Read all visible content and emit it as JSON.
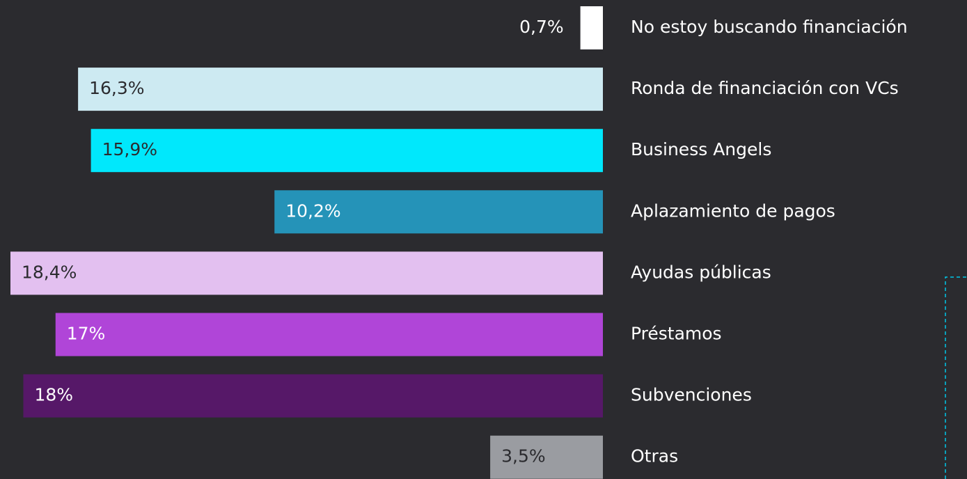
{
  "chart_data": {
    "type": "hbar",
    "categories": [
      "No estoy buscando financiación",
      "Ronda de financiación con VCs",
      "Business Angels",
      "Aplazamiento de pagos",
      "Ayudas públicas",
      "Préstamos",
      "Subvenciones",
      "Otras"
    ],
    "values": [
      0.7,
      16.3,
      15.9,
      10.2,
      18.4,
      17,
      18,
      3.5
    ],
    "value_labels": [
      "0,7%",
      "16,3%",
      "15,9%",
      "10,2%",
      "18,4%",
      "17%",
      "18%",
      "3,5%"
    ],
    "colors": [
      "#ffffff",
      "#cdeaf2",
      "#00e8fc",
      "#2593b8",
      "#e3c0f0",
      "#b045d8",
      "#561868",
      "#9a9ca1"
    ]
  }
}
